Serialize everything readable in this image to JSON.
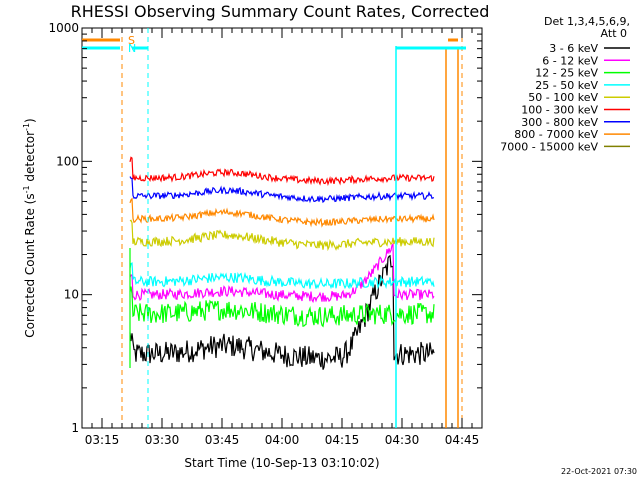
{
  "chart_data": {
    "type": "line",
    "title": "RHESSI Observing Summary Count Rates, Corrected",
    "xlabel": "Start Time (10-Sep-13 03:10:02)",
    "ylabel_main": "Corrected Count Rate (s",
    "ylabel_sup1": "-1",
    "ylabel_mid": " detector",
    "ylabel_sup2": "-1",
    "ylabel_end": ")",
    "y_scale": "log",
    "ylim": [
      1,
      1000
    ],
    "xlim_minutes": [
      0,
      100
    ],
    "x_tick_minutes": [
      5,
      20,
      35,
      50,
      65,
      80,
      95
    ],
    "x_tick_labels": [
      "03:15",
      "03:30",
      "03:45",
      "04:00",
      "04:15",
      "04:30",
      "04:45"
    ],
    "y_tick_values": [
      1,
      10,
      100,
      1000
    ],
    "y_tick_labels": [
      "1",
      "10",
      "100",
      "1000"
    ],
    "legend_header": [
      "Det 1,3,4,5,6,9,",
      "Att 0"
    ],
    "legend_position": "right",
    "series": [
      {
        "name": "3 - 6 keV",
        "color": "#000000",
        "level": 3.6,
        "bumpAmp": 0.15,
        "flare": 20.0,
        "noise": 0.09
      },
      {
        "name": "6 - 12 keV",
        "color": "#ff00ff",
        "level": 10.0,
        "bumpAmp": 0.06,
        "flare": 24.0,
        "noise": 0.04
      },
      {
        "name": "12 - 25 keV",
        "color": "#00ff00",
        "level": 7.2,
        "bumpAmp": 0.08,
        "flare": 0,
        "noise": 0.08
      },
      {
        "name": "25 - 50 keV",
        "color": "#00ffff",
        "level": 12.5,
        "bumpAmp": 0.08,
        "flare": 0,
        "noise": 0.04
      },
      {
        "name": "50 - 100 keV",
        "color": "#cccc00",
        "level": 25.0,
        "bumpAmp": 0.12,
        "flare": 0,
        "noise": 0.035
      },
      {
        "name": "100 - 300 keV",
        "color": "#ff0000",
        "level": 75.0,
        "bumpAmp": 0.1,
        "flare": 0,
        "noise": 0.025
      },
      {
        "name": "300 - 800 keV",
        "color": "#0000ff",
        "level": 55.0,
        "bumpAmp": 0.1,
        "flare": 0,
        "noise": 0.025
      },
      {
        "name": "800 - 7000 keV",
        "color": "#ff8800",
        "level": 37.0,
        "bumpAmp": 0.12,
        "flare": 0,
        "noise": 0.025
      },
      {
        "name": "7000 - 15000 keV",
        "color": "#808000",
        "level": 0,
        "bumpAmp": 0,
        "flare": 0,
        "noise": 0
      }
    ],
    "data_window_minutes": [
      12,
      88
    ],
    "flags": [
      {
        "label": "S",
        "color": "#ff8800",
        "dashed_at": [
          10,
          95
        ],
        "solid_at": [
          91,
          94
        ],
        "bar_y": 40
      },
      {
        "label": "N",
        "color": "#00ffff",
        "dashed_at": [
          16.5
        ],
        "solid_at": [],
        "bar_y": 48
      }
    ]
  },
  "timestamp": "22-Oct-2021 07:30"
}
